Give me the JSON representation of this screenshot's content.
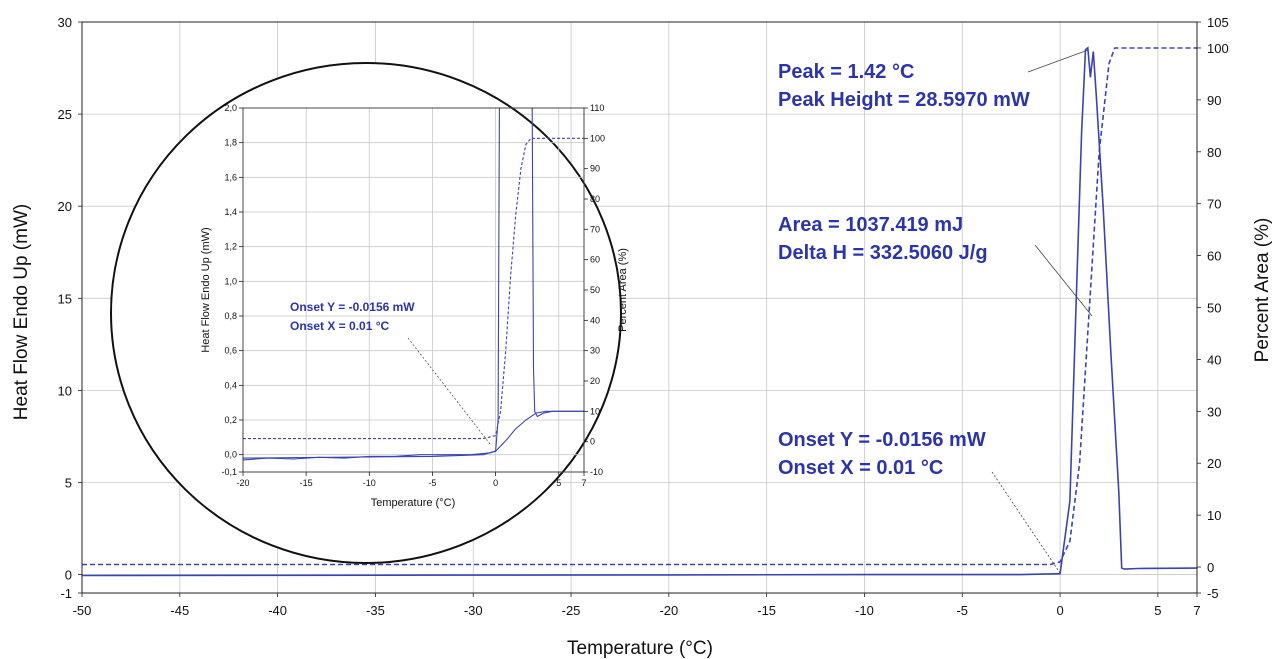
{
  "chart_data": [
    {
      "type": "line",
      "xlabel": "Temperature (°C)",
      "ylabel": "Heat Flow Endo Up (mW)",
      "y2label": "Percent Area (%)",
      "xlim": [
        -50,
        7
      ],
      "ylim": [
        -1,
        30
      ],
      "y2lim": [
        -5,
        105
      ],
      "grid": true,
      "x_ticks": [
        "-50",
        "-45",
        "-40",
        "-35",
        "-30",
        "-25",
        "-20",
        "-15",
        "-10",
        "-5",
        "0",
        "5",
        "7"
      ],
      "y_ticks": [
        "-1",
        "0",
        "5",
        "10",
        "15",
        "20",
        "25",
        "30"
      ],
      "y2_ticks": [
        "-5",
        "0",
        "10",
        "20",
        "30",
        "40",
        "50",
        "60",
        "70",
        "80",
        "90",
        "100",
        "105"
      ],
      "series": [
        {
          "axis": "left",
          "style": "solid",
          "color": "#3a44b0",
          "points": [
            [
              -50,
              -0.05
            ],
            [
              -40,
              -0.04
            ],
            [
              -30,
              -0.03
            ],
            [
              -20,
              -0.02
            ],
            [
              -10,
              0.0
            ],
            [
              -2,
              0.0
            ],
            [
              0,
              0.05
            ],
            [
              0.5,
              4
            ],
            [
              0.8,
              14
            ],
            [
              1.1,
              24
            ],
            [
              1.3,
              28.5
            ],
            [
              1.42,
              28.6
            ],
            [
              1.55,
              27.0
            ],
            [
              1.7,
              28.4
            ],
            [
              1.85,
              26.0
            ],
            [
              2.2,
              20
            ],
            [
              2.6,
              12
            ],
            [
              3.0,
              4.5
            ],
            [
              3.15,
              0.35
            ],
            [
              3.3,
              0.3
            ],
            [
              4,
              0.33
            ],
            [
              7,
              0.35
            ]
          ]
        },
        {
          "axis": "right",
          "style": "dashed",
          "color": "#3a44b0",
          "points": [
            [
              -50,
              0.5
            ],
            [
              -10,
              0.5
            ],
            [
              -0.5,
              0.5
            ],
            [
              0,
              1
            ],
            [
              0.5,
              5
            ],
            [
              1.0,
              20
            ],
            [
              1.5,
              50
            ],
            [
              2.0,
              80
            ],
            [
              2.5,
              97
            ],
            [
              2.8,
              100
            ],
            [
              7,
              100
            ]
          ]
        }
      ],
      "annotations": [
        {
          "text": "Peak = 1.42 °C"
        },
        {
          "text": "Peak Height = 28.5970 mW"
        },
        {
          "text": "Area = 1037.419 mJ"
        },
        {
          "text": "Delta H = 332.5060 J/g"
        },
        {
          "text": "Onset Y = -0.0156 mW"
        },
        {
          "text": "Onset X = 0.01 °C"
        }
      ]
    },
    {
      "type": "line",
      "inset": true,
      "xlabel": "Temperature (°C)",
      "ylabel": "Heat Flow Endo Up (mW)",
      "y2label": "Percent Area (%)",
      "xlim": [
        -20,
        7
      ],
      "ylim": [
        -0.1,
        2.0
      ],
      "y2lim": [
        -10,
        110
      ],
      "grid": true,
      "x_ticks": [
        "-20",
        "-15",
        "-10",
        "-5",
        "0",
        "5",
        "7"
      ],
      "y_ticks": [
        "-0,1",
        "0,0",
        "0,2",
        "0,4",
        "0,6",
        "0,8",
        "1,0",
        "1,2",
        "1,4",
        "1,6",
        "1,8",
        "2,0"
      ],
      "y2_ticks": [
        "-10",
        "0",
        "10",
        "20",
        "30",
        "40",
        "50",
        "60",
        "70",
        "80",
        "90",
        "100",
        "110"
      ],
      "series": [
        {
          "axis": "left",
          "style": "solid",
          "color": "#3a44b0",
          "points": [
            [
              -20,
              -0.03
            ],
            [
              -18,
              -0.02
            ],
            [
              -16,
              -0.025
            ],
            [
              -14,
              -0.015
            ],
            [
              -12,
              -0.02
            ],
            [
              -10,
              -0.01
            ],
            [
              -8,
              -0.01
            ],
            [
              -6,
              -0.0
            ],
            [
              -4,
              -0.0
            ],
            [
              -2,
              0.0
            ],
            [
              -0.5,
              0.01
            ],
            [
              0,
              0.02
            ],
            [
              0.2,
              0.2
            ],
            [
              0.3,
              2.0
            ]
          ]
        },
        {
          "axis": "left",
          "style": "solid",
          "color": "#3a44b0",
          "points": [
            [
              2.9,
              2.0
            ],
            [
              3.0,
              0.5
            ],
            [
              3.1,
              0.25
            ],
            [
              3.3,
              0.22
            ],
            [
              3.8,
              0.24
            ],
            [
              4.5,
              0.25
            ],
            [
              7,
              0.25
            ]
          ]
        },
        {
          "axis": "left",
          "style": "solid",
          "color": "#3a44b0",
          "points": [
            [
              -20,
              -0.02
            ],
            [
              -5,
              -0.01
            ],
            [
              -1,
              0.0
            ],
            [
              0,
              0.02
            ],
            [
              0.8,
              0.08
            ],
            [
              1.6,
              0.15
            ],
            [
              2.4,
              0.2
            ],
            [
              3.2,
              0.24
            ],
            [
              4,
              0.25
            ],
            [
              7,
              0.25
            ]
          ]
        },
        {
          "axis": "right",
          "style": "dashed",
          "color": "#3a44b0",
          "points": [
            [
              -20,
              1
            ],
            [
              -1,
              1
            ],
            [
              0,
              2
            ],
            [
              0.4,
              10
            ],
            [
              0.8,
              30
            ],
            [
              1.2,
              55
            ],
            [
              1.6,
              75
            ],
            [
              2.0,
              90
            ],
            [
              2.4,
              98
            ],
            [
              2.8,
              100
            ],
            [
              7,
              100
            ]
          ]
        }
      ],
      "annotations": [
        {
          "text": "Onset Y = -0.0156 mW"
        },
        {
          "text": "Onset X = 0.01 °C"
        }
      ]
    }
  ]
}
